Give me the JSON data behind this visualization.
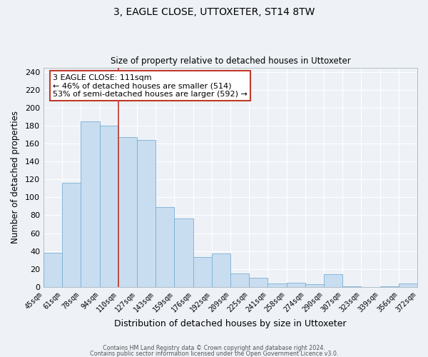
{
  "title": "3, EAGLE CLOSE, UTTOXETER, ST14 8TW",
  "subtitle": "Size of property relative to detached houses in Uttoxeter",
  "xlabel": "Distribution of detached houses by size in Uttoxeter",
  "ylabel": "Number of detached properties",
  "categories": [
    "45sqm",
    "61sqm",
    "78sqm",
    "94sqm",
    "110sqm",
    "127sqm",
    "143sqm",
    "159sqm",
    "176sqm",
    "192sqm",
    "209sqm",
    "225sqm",
    "241sqm",
    "258sqm",
    "274sqm",
    "290sqm",
    "307sqm",
    "323sqm",
    "339sqm",
    "356sqm",
    "372sqm"
  ],
  "values": [
    38,
    116,
    185,
    180,
    167,
    164,
    89,
    76,
    33,
    37,
    15,
    10,
    4,
    5,
    3,
    14,
    1,
    0,
    1,
    4
  ],
  "bar_color": "#c9ddf0",
  "bar_edge_color": "#7ab0d4",
  "vline_x_index": 4,
  "vline_color": "#c0392b",
  "annotation_title": "3 EAGLE CLOSE: 111sqm",
  "annotation_line1": "← 46% of detached houses are smaller (514)",
  "annotation_line2": "53% of semi-detached houses are larger (592) →",
  "annotation_box_color": "#c0392b",
  "ylim": [
    0,
    245
  ],
  "yticks": [
    0,
    20,
    40,
    60,
    80,
    100,
    120,
    140,
    160,
    180,
    200,
    220,
    240
  ],
  "footer1": "Contains HM Land Registry data © Crown copyright and database right 2024.",
  "footer2": "Contains public sector information licensed under the Open Government Licence v3.0.",
  "bg_color": "#eef2f7",
  "grid_color": "#ffffff",
  "spine_color": "#b0bec5"
}
